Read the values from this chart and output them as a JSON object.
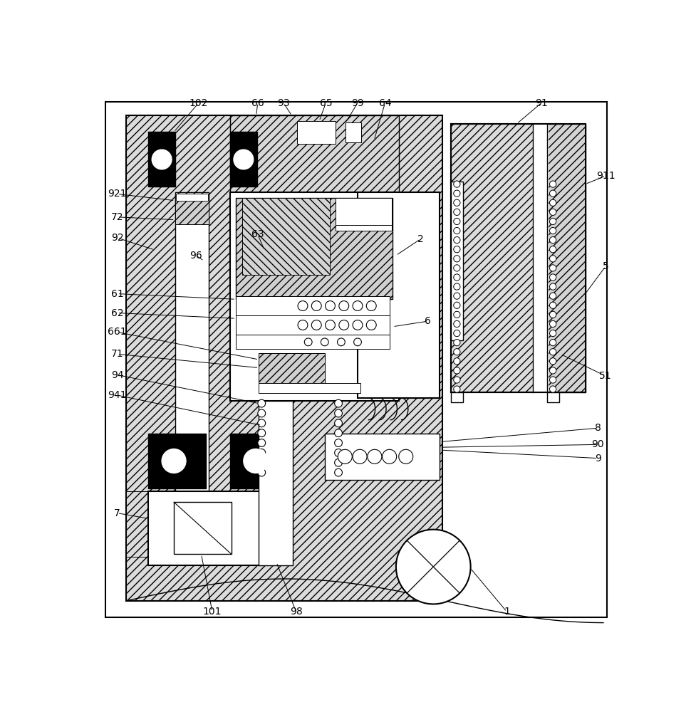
{
  "bg_color": "#ffffff",
  "hatch_light": "#e0e0e0",
  "hatch_medium": "#d0d0d0",
  "lw_thick": 1.5,
  "lw_med": 1.0,
  "lw_thin": 0.7,
  "label_fontsize": 10
}
